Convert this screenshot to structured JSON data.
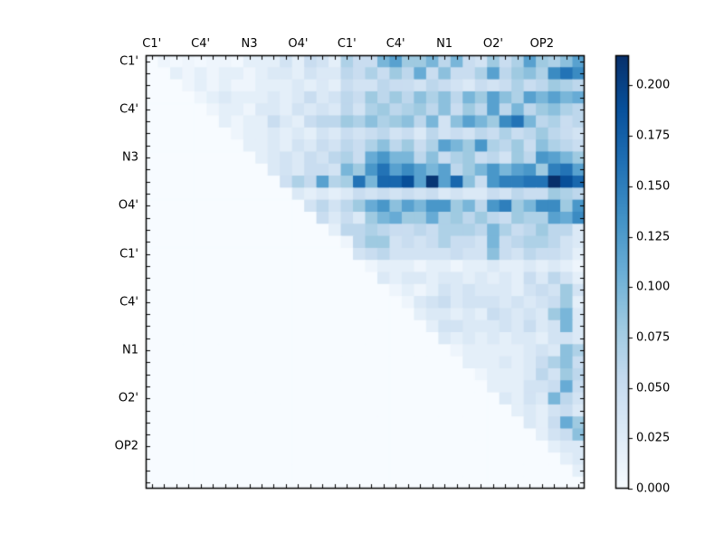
{
  "figure": {
    "background": "#ffffff",
    "frame_color": "#000000",
    "tick_color": "#000000",
    "label_color": "#000000"
  },
  "chart_data": {
    "type": "heatmap",
    "title": "",
    "xlabel": "",
    "ylabel": "",
    "n": 36,
    "grid": false,
    "legend": "colorbar-right",
    "axis_tick_labels": [
      "C1'",
      "C4'",
      "N3",
      "O4'",
      "C1'",
      "C4'",
      "N1",
      "O2'",
      "OP2"
    ],
    "axis_tick_positions": [
      0,
      4,
      8,
      12,
      16,
      20,
      24,
      28,
      32
    ],
    "vmin": 0.0,
    "vmax": 0.215,
    "colormap": "Blues",
    "colormap_stops": [
      "#f7fbff",
      "#deebf7",
      "#c6dbef",
      "#9ecae1",
      "#6baed6",
      "#4292c6",
      "#2171b5",
      "#08519c",
      "#08306b"
    ],
    "colorbar": {
      "tick_values": [
        0.0,
        0.025,
        0.05,
        0.075,
        0.1,
        0.125,
        0.15,
        0.175,
        0.2
      ],
      "tick_labels": [
        "0.000",
        "0.025",
        "0.050",
        "0.075",
        "0.100",
        "0.125",
        "0.150",
        "0.175",
        "0.200"
      ]
    },
    "matrix": [
      [
        0,
        0.01,
        0.005,
        0.01,
        0.005,
        0.01,
        0.01,
        0.005,
        0.02,
        0.02,
        0.02,
        0.04,
        0.02,
        0.05,
        0.04,
        0.02,
        0.07,
        0.05,
        0.05,
        0.1,
        0.12,
        0.08,
        0.08,
        0.1,
        0.06,
        0.1,
        0.05,
        0.04,
        0.08,
        0.05,
        0.07,
        0.12,
        0.08,
        0.07,
        0.09,
        0.12
      ],
      [
        0,
        0,
        0.02,
        0.01,
        0.02,
        0.01,
        0.02,
        0.02,
        0.01,
        0.02,
        0.03,
        0.03,
        0.02,
        0.04,
        0.03,
        0.03,
        0.06,
        0.05,
        0.07,
        0.05,
        0.08,
        0.06,
        0.11,
        0.05,
        0.09,
        0.05,
        0.05,
        0.07,
        0.12,
        0.06,
        0.08,
        0.09,
        0.07,
        0.14,
        0.16,
        0.14
      ],
      [
        0,
        0,
        0,
        0.01,
        0.02,
        0.01,
        0.02,
        0.01,
        0.01,
        0.02,
        0.02,
        0.02,
        0.03,
        0.02,
        0.03,
        0.02,
        0.05,
        0.04,
        0.04,
        0.06,
        0.05,
        0.05,
        0.04,
        0.06,
        0.05,
        0.04,
        0.03,
        0.05,
        0.04,
        0.05,
        0.07,
        0.05,
        0.06,
        0.08,
        0.07,
        0.06
      ],
      [
        0,
        0,
        0,
        0,
        0.01,
        0.02,
        0.03,
        0.02,
        0.02,
        0.02,
        0.03,
        0.02,
        0.03,
        0.05,
        0.03,
        0.04,
        0.06,
        0.05,
        0.08,
        0.06,
        0.08,
        0.06,
        0.09,
        0.07,
        0.09,
        0.06,
        0.1,
        0.08,
        0.12,
        0.09,
        0.07,
        0.12,
        0.1,
        0.12,
        0.1,
        0.11
      ],
      [
        0,
        0,
        0,
        0,
        0,
        0.01,
        0.02,
        0.02,
        0.01,
        0.03,
        0.03,
        0.02,
        0.04,
        0.03,
        0.04,
        0.03,
        0.06,
        0.04,
        0.07,
        0.08,
        0.06,
        0.07,
        0.08,
        0.06,
        0.09,
        0.05,
        0.08,
        0.06,
        0.12,
        0.06,
        0.1,
        0.06,
        0.08,
        0.09,
        0.07,
        0.06
      ],
      [
        0,
        0,
        0,
        0,
        0,
        0,
        0.02,
        0.01,
        0.02,
        0.02,
        0.05,
        0.03,
        0.02,
        0.05,
        0.06,
        0.06,
        0.08,
        0.07,
        0.09,
        0.07,
        0.08,
        0.09,
        0.06,
        0.1,
        0.04,
        0.09,
        0.12,
        0.1,
        0.08,
        0.14,
        0.16,
        0.1,
        0.06,
        0.07,
        0.05,
        0.06
      ],
      [
        0,
        0,
        0,
        0,
        0,
        0,
        0,
        0.01,
        0.02,
        0.02,
        0.03,
        0.02,
        0.03,
        0.02,
        0.04,
        0.03,
        0.05,
        0.04,
        0.05,
        0.06,
        0.04,
        0.05,
        0.03,
        0.06,
        0.04,
        0.05,
        0.04,
        0.06,
        0.05,
        0.07,
        0.05,
        0.06,
        0.08,
        0.06,
        0.05,
        0.04
      ],
      [
        0,
        0,
        0,
        0,
        0,
        0,
        0,
        0,
        0.02,
        0.02,
        0.03,
        0.02,
        0.04,
        0.03,
        0.05,
        0.04,
        0.06,
        0.05,
        0.07,
        0.09,
        0.06,
        0.08,
        0.05,
        0.07,
        0.12,
        0.1,
        0.08,
        0.13,
        0.07,
        0.06,
        0.08,
        0.05,
        0.09,
        0.07,
        0.06,
        0.05
      ],
      [
        0,
        0,
        0,
        0,
        0,
        0,
        0,
        0,
        0,
        0.02,
        0.03,
        0.04,
        0.03,
        0.05,
        0.04,
        0.06,
        0.07,
        0.05,
        0.11,
        0.13,
        0.1,
        0.1,
        0.06,
        0.09,
        0.05,
        0.07,
        0.08,
        0.05,
        0.06,
        0.04,
        0.08,
        0.06,
        0.13,
        0.12,
        0.1,
        0.08
      ],
      [
        0,
        0,
        0,
        0,
        0,
        0,
        0,
        0,
        0,
        0,
        0.03,
        0.04,
        0.03,
        0.05,
        0.05,
        0.04,
        0.1,
        0.08,
        0.13,
        0.16,
        0.12,
        0.14,
        0.12,
        0.1,
        0.12,
        0.06,
        0.08,
        0.1,
        0.13,
        0.1,
        0.12,
        0.13,
        0.08,
        0.15,
        0.16,
        0.12
      ],
      [
        0,
        0,
        0,
        0,
        0,
        0,
        0,
        0,
        0,
        0,
        0,
        0.045,
        0.07,
        0.055,
        0.12,
        0.065,
        0.075,
        0.16,
        0.1,
        0.17,
        0.17,
        0.19,
        0.12,
        0.21,
        0.12,
        0.17,
        0.09,
        0.05,
        0.13,
        0.15,
        0.15,
        0.16,
        0.16,
        0.215,
        0.19,
        0.17
      ],
      [
        0,
        0,
        0,
        0,
        0,
        0,
        0,
        0,
        0,
        0,
        0,
        0,
        0.03,
        0.02,
        0.03,
        0.02,
        0.03,
        0.05,
        0.04,
        0.05,
        0.04,
        0.05,
        0.04,
        0.05,
        0.03,
        0.04,
        0.03,
        0.03,
        0.05,
        0.04,
        0.06,
        0.05,
        0.05,
        0.08,
        0.07,
        0.06
      ],
      [
        0,
        0,
        0,
        0,
        0,
        0,
        0,
        0,
        0,
        0,
        0,
        0,
        0,
        0.04,
        0.06,
        0.04,
        0.06,
        0.08,
        0.11,
        0.13,
        0.09,
        0.12,
        0.1,
        0.13,
        0.13,
        0.08,
        0.1,
        0.06,
        0.13,
        0.15,
        0.08,
        0.1,
        0.14,
        0.14,
        0.08,
        0.13
      ],
      [
        0,
        0,
        0,
        0,
        0,
        0,
        0,
        0,
        0,
        0,
        0,
        0,
        0,
        0,
        0.05,
        0.03,
        0.05,
        0.03,
        0.08,
        0.1,
        0.11,
        0.08,
        0.08,
        0.11,
        0.07,
        0.08,
        0.06,
        0.08,
        0.06,
        0.05,
        0.08,
        0.07,
        0.07,
        0.12,
        0.11,
        0.14
      ],
      [
        0,
        0,
        0,
        0,
        0,
        0,
        0,
        0,
        0,
        0,
        0,
        0,
        0,
        0,
        0,
        0.02,
        0.06,
        0.06,
        0.07,
        0.06,
        0.05,
        0.05,
        0.06,
        0.05,
        0.07,
        0.07,
        0.07,
        0.06,
        0.1,
        0.07,
        0.05,
        0.06,
        0.08,
        0.06,
        0.06,
        0.03
      ],
      [
        0,
        0,
        0,
        0,
        0,
        0,
        0,
        0,
        0,
        0,
        0,
        0,
        0,
        0,
        0,
        0,
        0.01,
        0.06,
        0.08,
        0.08,
        0.04,
        0.05,
        0.04,
        0.05,
        0.07,
        0.05,
        0.05,
        0.04,
        0.1,
        0.05,
        0.06,
        0.07,
        0.07,
        0.06,
        0.04,
        0.03
      ],
      [
        0,
        0,
        0,
        0,
        0,
        0,
        0,
        0,
        0,
        0,
        0,
        0,
        0,
        0,
        0,
        0,
        0,
        0.04,
        0.05,
        0.06,
        0.04,
        0.04,
        0.04,
        0.04,
        0.04,
        0.05,
        0.04,
        0.04,
        0.09,
        0.05,
        0.04,
        0.06,
        0.05,
        0.05,
        0.04,
        0.02
      ],
      [
        0,
        0,
        0,
        0,
        0,
        0,
        0,
        0,
        0,
        0,
        0,
        0,
        0,
        0,
        0,
        0,
        0,
        0,
        0.01,
        0.02,
        0.02,
        0.02,
        0.01,
        0.02,
        0.02,
        0.01,
        0.02,
        0.02,
        0.03,
        0.02,
        0.02,
        0.03,
        0.02,
        0.03,
        0.02,
        0.01
      ],
      [
        0,
        0,
        0,
        0,
        0,
        0,
        0,
        0,
        0,
        0,
        0,
        0,
        0,
        0,
        0,
        0,
        0,
        0,
        0,
        0.03,
        0.02,
        0.03,
        0.03,
        0.02,
        0.03,
        0.03,
        0.02,
        0.03,
        0.02,
        0.03,
        0.02,
        0.05,
        0.03,
        0.06,
        0.04,
        0.02
      ],
      [
        0,
        0,
        0,
        0,
        0,
        0,
        0,
        0,
        0,
        0,
        0,
        0,
        0,
        0,
        0,
        0,
        0,
        0,
        0,
        0,
        0.01,
        0.02,
        0.01,
        0.02,
        0.04,
        0.03,
        0.04,
        0.03,
        0.03,
        0.03,
        0.02,
        0.04,
        0.05,
        0.04,
        0.08,
        0.04
      ],
      [
        0,
        0,
        0,
        0,
        0,
        0,
        0,
        0,
        0,
        0,
        0,
        0,
        0,
        0,
        0,
        0,
        0,
        0,
        0,
        0,
        0,
        0.01,
        0.03,
        0.04,
        0.05,
        0.03,
        0.04,
        0.04,
        0.04,
        0.03,
        0.04,
        0.03,
        0.04,
        0.05,
        0.08,
        0.02
      ],
      [
        0,
        0,
        0,
        0,
        0,
        0,
        0,
        0,
        0,
        0,
        0,
        0,
        0,
        0,
        0,
        0,
        0,
        0,
        0,
        0,
        0,
        0,
        0.02,
        0.03,
        0.03,
        0.02,
        0.03,
        0.02,
        0.05,
        0.04,
        0.03,
        0.04,
        0.03,
        0.08,
        0.1,
        0.03
      ],
      [
        0,
        0,
        0,
        0,
        0,
        0,
        0,
        0,
        0,
        0,
        0,
        0,
        0,
        0,
        0,
        0,
        0,
        0,
        0,
        0,
        0,
        0,
        0,
        0.02,
        0.04,
        0.04,
        0.03,
        0.03,
        0.03,
        0.04,
        0.03,
        0.05,
        0.03,
        0.04,
        0.1,
        0.03
      ],
      [
        0,
        0,
        0,
        0,
        0,
        0,
        0,
        0,
        0,
        0,
        0,
        0,
        0,
        0,
        0,
        0,
        0,
        0,
        0,
        0,
        0,
        0,
        0,
        0,
        0.03,
        0.02,
        0.03,
        0.02,
        0.03,
        0.02,
        0.03,
        0.03,
        0.02,
        0.04,
        0.04,
        0.03
      ],
      [
        0,
        0,
        0,
        0,
        0,
        0,
        0,
        0,
        0,
        0,
        0,
        0,
        0,
        0,
        0,
        0,
        0,
        0,
        0,
        0,
        0,
        0,
        0,
        0,
        0,
        0.01,
        0.02,
        0.02,
        0.02,
        0.02,
        0.02,
        0.03,
        0.04,
        0.03,
        0.09,
        0.07
      ],
      [
        0,
        0,
        0,
        0,
        0,
        0,
        0,
        0,
        0,
        0,
        0,
        0,
        0,
        0,
        0,
        0,
        0,
        0,
        0,
        0,
        0,
        0,
        0,
        0,
        0,
        0,
        0.02,
        0.02,
        0.02,
        0.03,
        0.02,
        0.03,
        0.05,
        0.07,
        0.09,
        0.05
      ],
      [
        0,
        0,
        0,
        0,
        0,
        0,
        0,
        0,
        0,
        0,
        0,
        0,
        0,
        0,
        0,
        0,
        0,
        0,
        0,
        0,
        0,
        0,
        0,
        0,
        0,
        0,
        0,
        0.01,
        0.02,
        0.02,
        0.02,
        0.03,
        0.06,
        0.04,
        0.08,
        0.06
      ],
      [
        0,
        0,
        0,
        0,
        0,
        0,
        0,
        0,
        0,
        0,
        0,
        0,
        0,
        0,
        0,
        0,
        0,
        0,
        0,
        0,
        0,
        0,
        0,
        0,
        0,
        0,
        0,
        0,
        0.02,
        0.02,
        0.02,
        0.04,
        0.04,
        0.05,
        0.11,
        0.05
      ],
      [
        0,
        0,
        0,
        0,
        0,
        0,
        0,
        0,
        0,
        0,
        0,
        0,
        0,
        0,
        0,
        0,
        0,
        0,
        0,
        0,
        0,
        0,
        0,
        0,
        0,
        0,
        0,
        0,
        0,
        0.03,
        0.02,
        0.04,
        0.03,
        0.1,
        0.06,
        0.04
      ],
      [
        0,
        0,
        0,
        0,
        0,
        0,
        0,
        0,
        0,
        0,
        0,
        0,
        0,
        0,
        0,
        0,
        0,
        0,
        0,
        0,
        0,
        0,
        0,
        0,
        0,
        0,
        0,
        0,
        0,
        0,
        0.02,
        0.03,
        0.02,
        0.04,
        0.05,
        0.03
      ],
      [
        0,
        0,
        0,
        0,
        0,
        0,
        0,
        0,
        0,
        0,
        0,
        0,
        0,
        0,
        0,
        0,
        0,
        0,
        0,
        0,
        0,
        0,
        0,
        0,
        0,
        0,
        0,
        0,
        0,
        0,
        0,
        0.03,
        0.02,
        0.05,
        0.11,
        0.08
      ],
      [
        0,
        0,
        0,
        0,
        0,
        0,
        0,
        0,
        0,
        0,
        0,
        0,
        0,
        0,
        0,
        0,
        0,
        0,
        0,
        0,
        0,
        0,
        0,
        0,
        0,
        0,
        0,
        0,
        0,
        0,
        0,
        0,
        0.02,
        0.04,
        0.05,
        0.09
      ],
      [
        0,
        0,
        0,
        0,
        0,
        0,
        0,
        0,
        0,
        0,
        0,
        0,
        0,
        0,
        0,
        0,
        0,
        0,
        0,
        0,
        0,
        0,
        0,
        0,
        0,
        0,
        0,
        0,
        0,
        0,
        0,
        0,
        0,
        0.02,
        0.03,
        0.03
      ],
      [
        0,
        0,
        0,
        0,
        0,
        0,
        0,
        0,
        0,
        0,
        0,
        0,
        0,
        0,
        0,
        0,
        0,
        0,
        0,
        0,
        0,
        0,
        0,
        0,
        0,
        0,
        0,
        0,
        0,
        0,
        0,
        0,
        0,
        0,
        0.02,
        0.03
      ],
      [
        0,
        0,
        0,
        0,
        0,
        0,
        0,
        0,
        0,
        0,
        0,
        0,
        0,
        0,
        0,
        0,
        0,
        0,
        0,
        0,
        0,
        0,
        0,
        0,
        0,
        0,
        0,
        0,
        0,
        0,
        0,
        0,
        0,
        0,
        0,
        0.02
      ],
      [
        0,
        0,
        0,
        0,
        0,
        0,
        0,
        0,
        0,
        0,
        0,
        0,
        0,
        0,
        0,
        0,
        0,
        0,
        0,
        0,
        0,
        0,
        0,
        0,
        0,
        0,
        0,
        0,
        0,
        0,
        0,
        0,
        0,
        0,
        0,
        0
      ]
    ]
  }
}
